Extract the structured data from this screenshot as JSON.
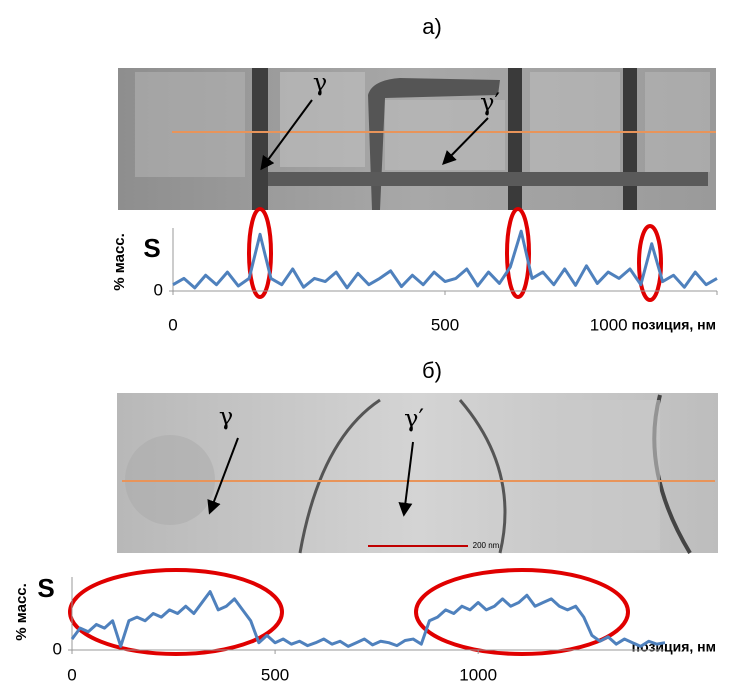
{
  "chart_data": [
    {
      "type": "line",
      "panel_label": "а)",
      "element": "S",
      "ylabel": "% масс.",
      "xlabel": "позиция, нм",
      "annotations": [
        "γ",
        "γ′"
      ],
      "xlim": [
        0,
        1000
      ],
      "xticks": [
        0,
        500,
        1000
      ],
      "ylim": [
        0,
        10
      ],
      "yticks": [
        0
      ],
      "x": [
        0,
        20,
        40,
        60,
        80,
        100,
        120,
        140,
        160,
        180,
        200,
        220,
        240,
        260,
        280,
        300,
        320,
        340,
        360,
        380,
        400,
        420,
        440,
        460,
        480,
        500,
        520,
        540,
        560,
        580,
        600,
        620,
        640,
        660,
        680,
        700,
        720,
        740,
        760,
        780,
        800,
        820,
        840,
        860,
        880,
        900,
        920,
        940,
        960,
        980,
        1000
      ],
      "series": [
        {
          "name": "S",
          "color": "#4f81bd",
          "values": [
            1,
            2,
            0.5,
            2.5,
            1,
            3,
            0.8,
            2,
            9,
            2,
            1,
            3.5,
            0.6,
            2,
            1.5,
            3,
            0.5,
            2.8,
            1,
            2,
            3.2,
            0.7,
            2.5,
            1,
            3,
            1.5,
            2,
            3.5,
            0.8,
            3,
            1.2,
            3.8,
            9.5,
            2,
            3,
            1,
            3.5,
            0.9,
            4,
            1.2,
            3,
            2,
            3.5,
            1,
            7.5,
            1.5,
            2.5,
            0.6,
            3,
            1,
            2
          ]
        }
      ]
    },
    {
      "type": "line",
      "panel_label": "б)",
      "element": "S",
      "ylabel": "% масс.",
      "xlabel": "позиция, нм",
      "annotations": [
        "γ",
        "γ′"
      ],
      "scale_bar": "200 nm",
      "xlim": [
        0,
        1460
      ],
      "xticks": [
        0,
        500,
        1000
      ],
      "ylim": [
        0,
        10
      ],
      "yticks": [
        0
      ],
      "x": [
        0,
        20,
        40,
        60,
        80,
        100,
        120,
        140,
        160,
        180,
        200,
        220,
        240,
        260,
        280,
        300,
        320,
        340,
        360,
        380,
        400,
        420,
        440,
        460,
        480,
        500,
        520,
        540,
        560,
        580,
        600,
        620,
        640,
        660,
        680,
        700,
        720,
        740,
        760,
        780,
        800,
        820,
        840,
        860,
        880,
        900,
        920,
        940,
        960,
        980,
        1000,
        1020,
        1040,
        1060,
        1080,
        1100,
        1120,
        1140,
        1160,
        1180,
        1200,
        1220,
        1240,
        1260,
        1280,
        1300,
        1320,
        1340,
        1360,
        1380,
        1400,
        1420,
        1440,
        1460
      ],
      "series": [
        {
          "name": "S",
          "color": "#4f81bd",
          "values": [
            1.5,
            3,
            2.5,
            3.5,
            3,
            4,
            0.5,
            4,
            4.5,
            4,
            5,
            4.5,
            5.5,
            5,
            6,
            5,
            6.5,
            8,
            5.5,
            6,
            7,
            5.5,
            4,
            1,
            2,
            1,
            1.5,
            0.8,
            1.2,
            0.6,
            1,
            1.5,
            0.8,
            1.2,
            0.5,
            1,
            1.5,
            0.7,
            1.2,
            1,
            0.6,
            1.3,
            1.5,
            0.8,
            4,
            4.5,
            5.5,
            5,
            6,
            5.5,
            6.5,
            5.5,
            6,
            7,
            6,
            6.5,
            7.5,
            6,
            6.5,
            7,
            6,
            5.5,
            6,
            4.5,
            2,
            1.2,
            1.8,
            0.8,
            1.5,
            1,
            0.5,
            1.2,
            0.8,
            1
          ]
        }
      ]
    }
  ]
}
